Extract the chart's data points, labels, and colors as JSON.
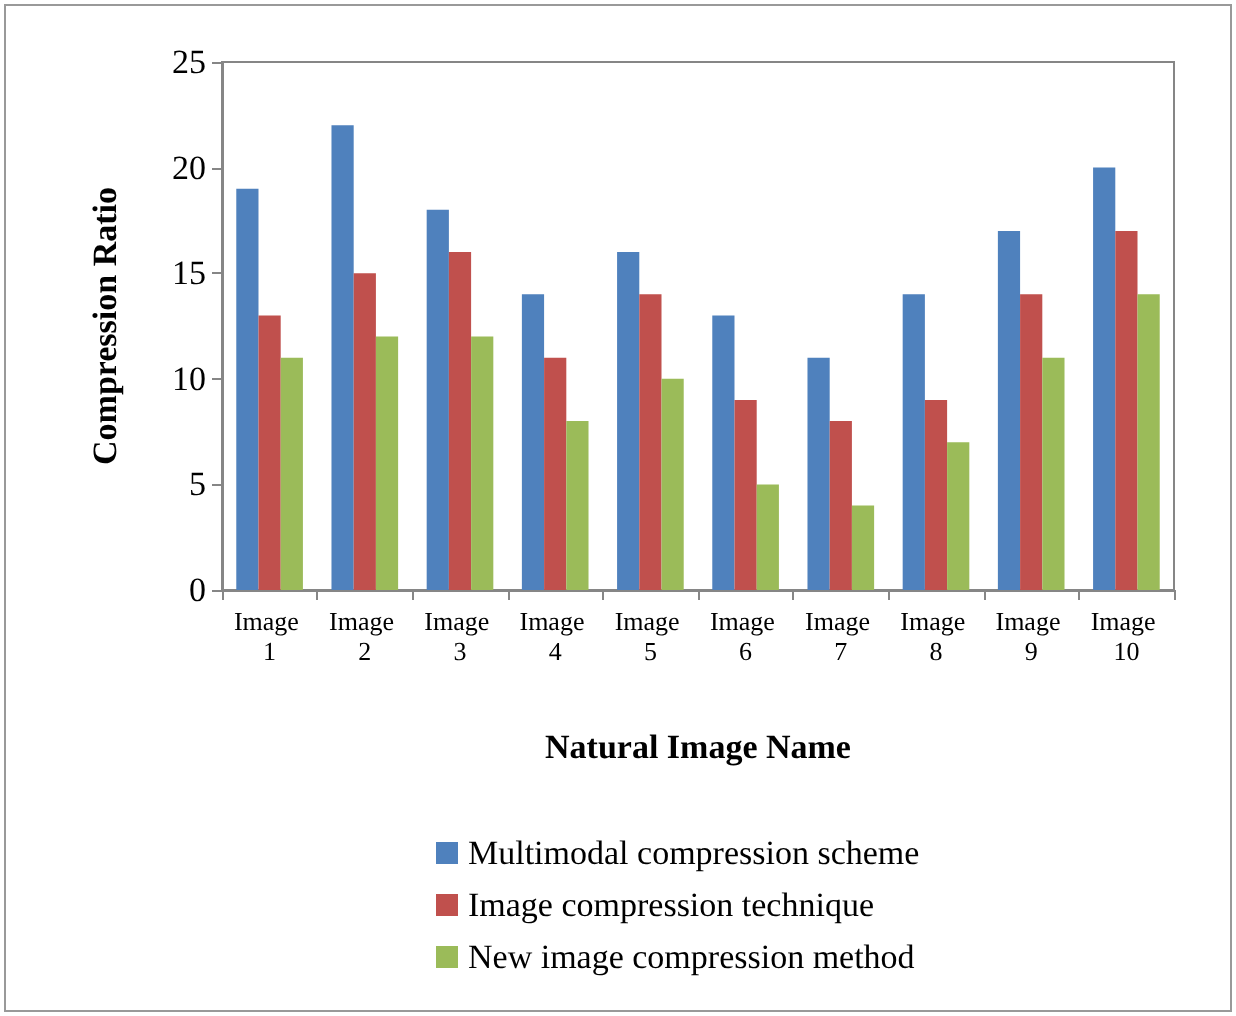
{
  "chart_data": {
    "type": "bar",
    "xlabel": "Natural Image Name",
    "ylabel": "Compression Ratio",
    "categories": [
      "Image 1",
      "Image 2",
      "Image 3",
      "Image 4",
      "Image 5",
      "Image 6",
      "Image 7",
      "Image 8",
      "Image 9",
      "Image 10"
    ],
    "series": [
      {
        "name": "Multimodal compression scheme",
        "color": "#4f81bd",
        "values": [
          19,
          22,
          18,
          14,
          16,
          13,
          11,
          14,
          17,
          20
        ]
      },
      {
        "name": "Image compression technique",
        "color": "#c0504d",
        "values": [
          13,
          15,
          16,
          11,
          14,
          9,
          8,
          9,
          14,
          17
        ]
      },
      {
        "name": "New image compression method",
        "color": "#9bbb59",
        "values": [
          11,
          12,
          12,
          8,
          10,
          5,
          4,
          7,
          11,
          14
        ]
      }
    ],
    "ylim": [
      0,
      25
    ],
    "yticks": [
      0,
      5,
      10,
      15,
      20,
      25
    ],
    "grid": false,
    "legend": "bottom"
  }
}
